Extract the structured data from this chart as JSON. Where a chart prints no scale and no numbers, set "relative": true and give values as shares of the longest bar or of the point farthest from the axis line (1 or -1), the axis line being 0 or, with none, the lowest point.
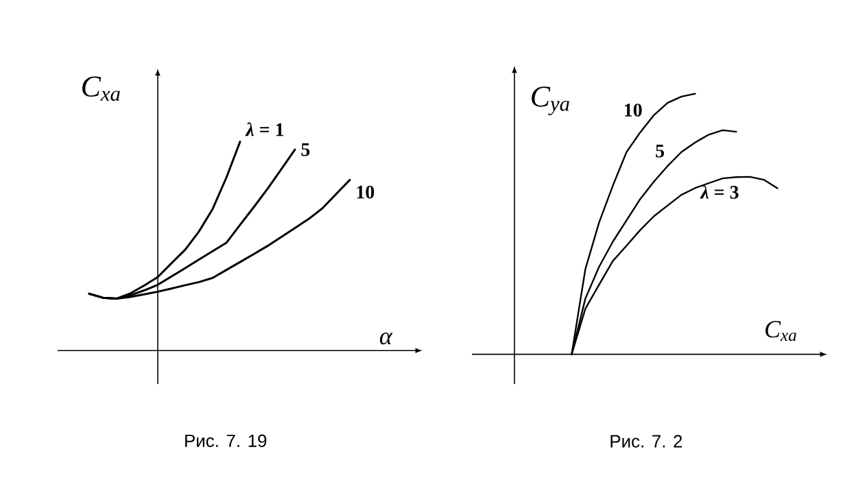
{
  "chart_data": [
    {
      "type": "line",
      "relative": true,
      "xlabel": "α",
      "ylabel": "C$_{xa}$",
      "annotations": [
        "Рис. 7. 19"
      ],
      "categories": [
        null,
        null,
        null,
        null,
        null,
        null,
        null,
        null,
        null,
        null,
        null,
        null,
        null,
        null,
        null,
        null,
        null,
        null,
        null,
        null
      ],
      "series": [
        {
          "name": "*λ* = 1",
          "color": "#000000",
          "values": [
            0.272,
            0.253,
            0.249,
            0.274,
            0.311,
            0.352,
            0.418,
            0.483,
            0.57,
            0.678,
            0.828,
            1,
            null,
            null,
            null,
            null,
            null,
            null,
            null,
            null
          ]
        },
        {
          "name": "5",
          "color": "#000000",
          "values": [
            0.272,
            0.253,
            0.249,
            0.265,
            0.288,
            0.315,
            0.355,
            0.395,
            0.436,
            0.476,
            0.516,
            0.602,
            0.687,
            0.774,
            0.868,
            0.962,
            null,
            null,
            null,
            null
          ]
        },
        {
          "name": "10",
          "color": "#000000",
          "values": [
            0.272,
            0.253,
            0.249,
            0.257,
            0.269,
            0.282,
            0.297,
            0.313,
            0.328,
            0.348,
            0.386,
            0.424,
            0.462,
            0.501,
            0.544,
            0.587,
            0.63,
            0.681,
            0.749,
            0.817
          ]
        }
      ]
    },
    {
      "type": "line",
      "relative": true,
      "xlabel": "C$_{xa}$",
      "ylabel": "C$_{ya}$",
      "annotations": [
        "Рис. 7. 2"
      ],
      "categories": [
        null,
        null,
        null,
        null,
        null,
        null,
        null,
        null,
        null,
        null,
        null,
        null,
        null,
        null,
        null,
        null
      ],
      "series": [
        {
          "name": "10",
          "color": "#000000",
          "values": [
            0,
            0.327,
            0.506,
            0.647,
            0.776,
            0.852,
            0.918,
            0.965,
            0.989,
            1,
            null,
            null,
            null,
            null,
            null,
            null
          ]
        },
        {
          "name": "5",
          "color": "#000000",
          "values": [
            0,
            0.214,
            0.336,
            0.432,
            0.514,
            0.596,
            0.663,
            0.723,
            0.776,
            0.813,
            0.843,
            0.86,
            0.854,
            null,
            null,
            null
          ]
        },
        {
          "name": "*λ* = 3",
          "color": "#000000",
          "values": [
            0,
            0.175,
            0.267,
            0.358,
            0.417,
            0.477,
            0.53,
            0.571,
            0.612,
            0.638,
            0.657,
            0.675,
            0.68,
            0.681,
            0.67,
            0.637
          ]
        }
      ]
    }
  ]
}
